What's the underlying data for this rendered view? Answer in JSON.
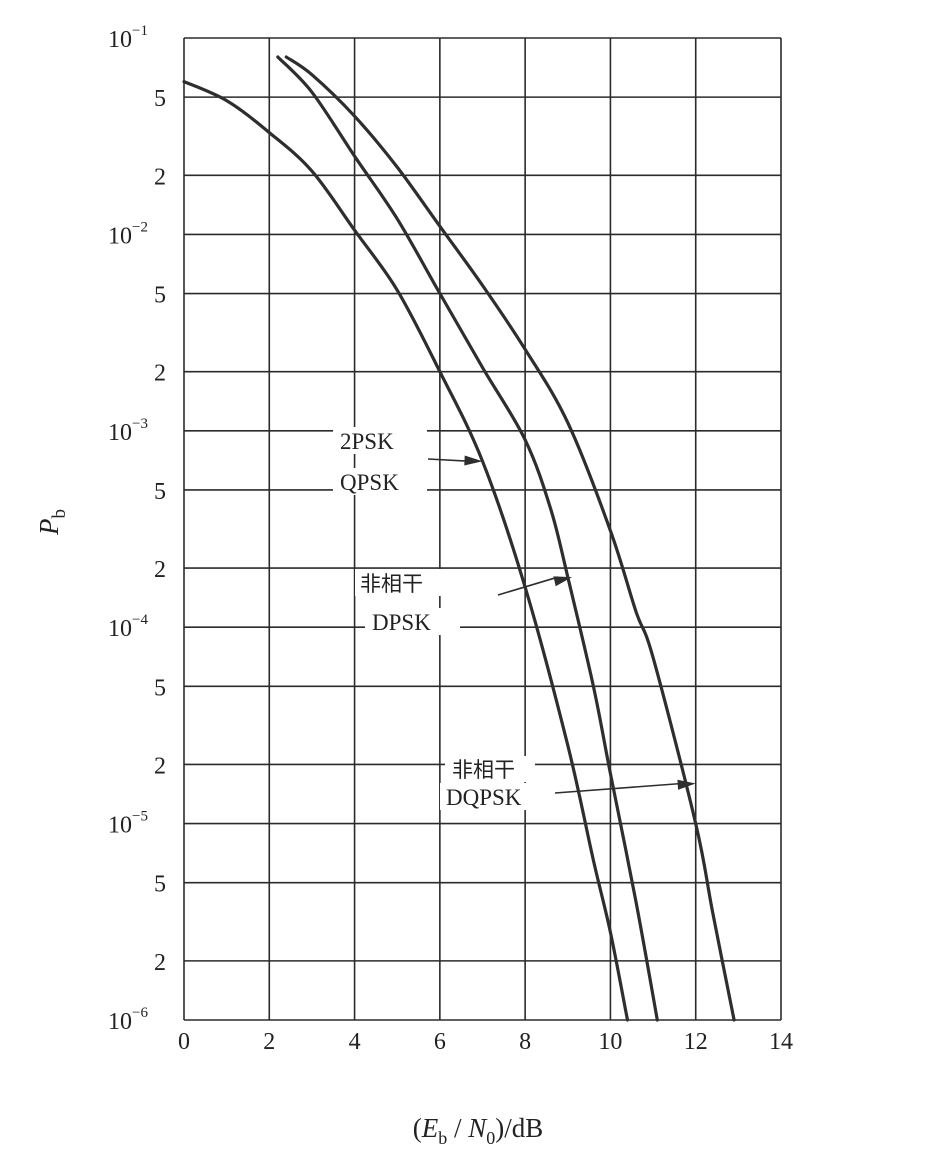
{
  "chart_data": {
    "type": "line",
    "title": "",
    "xlabel": {
      "open": "(",
      "E": "E",
      "E_sub": "b",
      "slash": " / ",
      "N": "N",
      "N_sub": "0",
      "close": ")/dB"
    },
    "ylabel": {
      "P": "P",
      "sub": "b"
    },
    "x_scale": "linear",
    "y_scale": "log",
    "xlim": [
      0,
      14
    ],
    "ylim": [
      1e-06,
      0.1
    ],
    "grid": true,
    "x_ticks": [
      {
        "value": 0,
        "label": "0"
      },
      {
        "value": 2,
        "label": "2"
      },
      {
        "value": 4,
        "label": "4"
      },
      {
        "value": 6,
        "label": "6"
      },
      {
        "value": 8,
        "label": "8"
      },
      {
        "value": 10,
        "label": "10"
      },
      {
        "value": 12,
        "label": "12"
      },
      {
        "value": 14,
        "label": "14"
      }
    ],
    "y_ticks": [
      {
        "value": 0.1,
        "base": "10",
        "exp": "−1"
      },
      {
        "value": 0.05,
        "base": "5",
        "exp": ""
      },
      {
        "value": 0.02,
        "base": "2",
        "exp": ""
      },
      {
        "value": 0.01,
        "base": "10",
        "exp": "−2"
      },
      {
        "value": 0.005,
        "base": "5",
        "exp": ""
      },
      {
        "value": 0.002,
        "base": "2",
        "exp": ""
      },
      {
        "value": 0.001,
        "base": "10",
        "exp": "−3"
      },
      {
        "value": 0.0005,
        "base": "5",
        "exp": ""
      },
      {
        "value": 0.0002,
        "base": "2",
        "exp": ""
      },
      {
        "value": 0.0001,
        "base": "10",
        "exp": "−4"
      },
      {
        "value": 5e-05,
        "base": "5",
        "exp": ""
      },
      {
        "value": 2e-05,
        "base": "2",
        "exp": ""
      },
      {
        "value": 1e-05,
        "base": "10",
        "exp": "−5"
      },
      {
        "value": 5e-06,
        "base": "5",
        "exp": ""
      },
      {
        "value": 2e-06,
        "base": "2",
        "exp": ""
      },
      {
        "value": 1e-06,
        "base": "10",
        "exp": "−6"
      }
    ],
    "series": [
      {
        "x": [
          0,
          1,
          2,
          3,
          4,
          5,
          6,
          7,
          8,
          9,
          9.6,
          10,
          10.4
        ],
        "y": [
          0.06,
          0.048,
          0.033,
          0.021,
          0.0105,
          0.0052,
          0.002,
          0.0007,
          0.00016,
          2.5e-05,
          6.5e-06,
          2.8e-06,
          1e-06
        ]
      },
      {
        "x": [
          2.2,
          3,
          4,
          5,
          6,
          7,
          8,
          8.6,
          9,
          9.6,
          10,
          10.6,
          11.1
        ],
        "y": [
          0.08,
          0.053,
          0.025,
          0.012,
          0.005,
          0.0021,
          0.0009,
          0.0004,
          0.00018,
          5e-05,
          1.8e-05,
          4e-06,
          1e-06
        ]
      },
      {
        "x": [
          2.4,
          3,
          4,
          5,
          6,
          7,
          8,
          9,
          10,
          10.6,
          11,
          12,
          12.4,
          12.9
        ],
        "y": [
          0.08,
          0.065,
          0.04,
          0.022,
          0.011,
          0.0055,
          0.0026,
          0.0011,
          0.00031,
          0.00012,
          7e-05,
          1e-05,
          3.5e-06,
          1e-06
        ]
      }
    ],
    "annotations": [
      {
        "lines": [
          "2PSK",
          "QPSK"
        ],
        "target": {
          "x": 7,
          "y": 0.0007
        }
      },
      {
        "lines": [
          "非相干",
          "DPSK"
        ],
        "target": {
          "x": 9.1,
          "y": 0.00018
        }
      },
      {
        "lines": [
          "非相干",
          "DQPSK"
        ],
        "target": {
          "x": 12,
          "y": 1.6e-05
        }
      }
    ]
  }
}
